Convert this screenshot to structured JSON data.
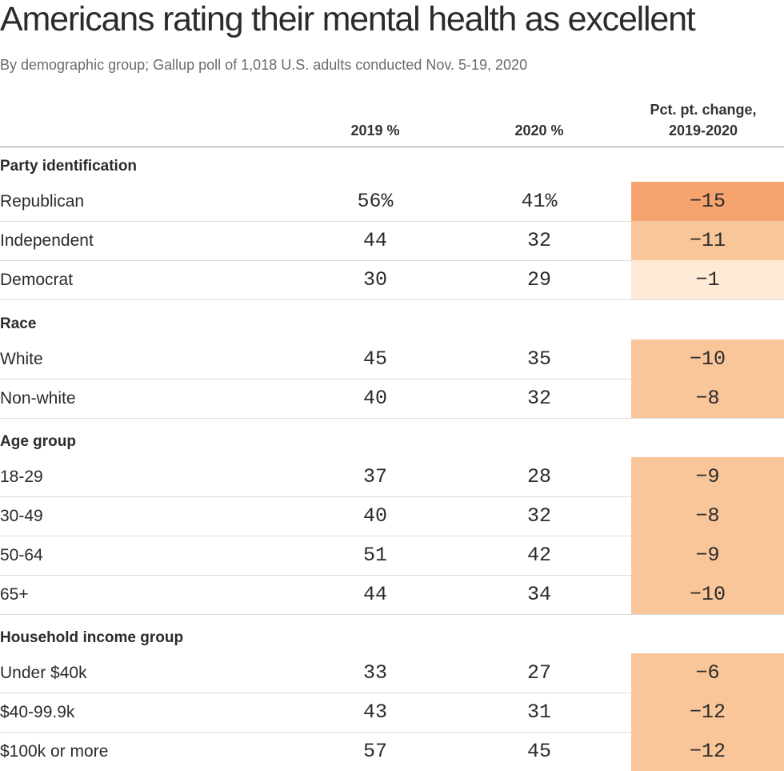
{
  "title": "Americans rating their mental health as excellent",
  "subtitle": "By demographic group; Gallup poll of 1,018 U.S. adults conducted Nov. 5-19, 2020",
  "columns": {
    "col_2019": "2019 %",
    "col_2020": "2020 %",
    "change_line1": "Pct. pt. change,",
    "change_line2": "2019-2020"
  },
  "colors": {
    "text": "#2b2b2b",
    "subtitle": "#6b6b6b",
    "scale_light": "#fdebd6",
    "scale_mid": "#f8c698",
    "scale_dark": "#f6a46f"
  },
  "chart_data": {
    "type": "table",
    "title": "Americans rating their mental health as excellent",
    "subtitle": "By demographic group; Gallup poll of 1,018 U.S. adults conducted Nov. 5-19, 2020",
    "columns": [
      "2019 %",
      "2020 %",
      "Pct. pt. change, 2019-2020"
    ],
    "groups": [
      {
        "name": "Party identification",
        "rows": [
          {
            "label": "Republican",
            "v2019": "56%",
            "v2020": "41%",
            "change": "-15",
            "change_value": -15
          },
          {
            "label": "Independent",
            "v2019": "44",
            "v2020": "32",
            "change": "-11",
            "change_value": -11
          },
          {
            "label": "Democrat",
            "v2019": "30",
            "v2020": "29",
            "change": "-1",
            "change_value": -1
          }
        ]
      },
      {
        "name": "Race",
        "rows": [
          {
            "label": "White",
            "v2019": "45",
            "v2020": "35",
            "change": "-10",
            "change_value": -10
          },
          {
            "label": "Non-white",
            "v2019": "40",
            "v2020": "32",
            "change": "-8",
            "change_value": -8
          }
        ]
      },
      {
        "name": "Age group",
        "rows": [
          {
            "label": "18-29",
            "v2019": "37",
            "v2020": "28",
            "change": "-9",
            "change_value": -9
          },
          {
            "label": "30-49",
            "v2019": "40",
            "v2020": "32",
            "change": "-8",
            "change_value": -8
          },
          {
            "label": "50-64",
            "v2019": "51",
            "v2020": "42",
            "change": "-9",
            "change_value": -9
          },
          {
            "label": "65+",
            "v2019": "44",
            "v2020": "34",
            "change": "-10",
            "change_value": -10
          }
        ]
      },
      {
        "name": "Household income group",
        "rows": [
          {
            "label": "Under $40k",
            "v2019": "33",
            "v2020": "27",
            "change": "-6",
            "change_value": -6
          },
          {
            "label": "$40-99.9k",
            "v2019": "43",
            "v2020": "31",
            "change": "-12",
            "change_value": -12
          },
          {
            "label": "$100k or more",
            "v2019": "57",
            "v2020": "45",
            "change": "-12",
            "change_value": -12
          }
        ]
      }
    ]
  }
}
